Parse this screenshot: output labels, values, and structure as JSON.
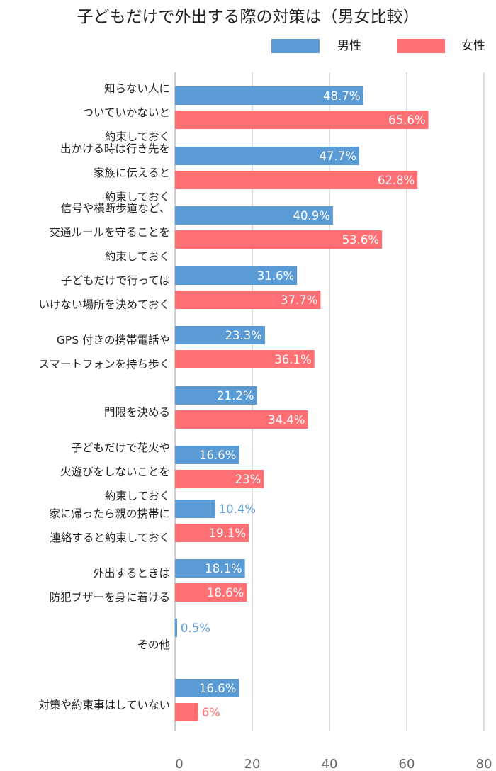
{
  "chart_data": {
    "type": "bar",
    "orientation": "horizontal",
    "title": "子どもだけで外出する際の対策は（男女比較）",
    "categories": [
      [
        "知らない人に",
        "ついていかないと",
        "約束しておく"
      ],
      [
        "出かける時は行き先を",
        "家族に伝えると",
        "約束しておく"
      ],
      [
        "信号や横断歩道など、",
        "交通ルールを守ることを",
        "約束しておく"
      ],
      [
        "子どもだけで行っては",
        "いけない場所を決めておく"
      ],
      [
        "GPS 付きの携帯電話や",
        "スマートフォンを持ち歩く"
      ],
      [
        "門限を決める"
      ],
      [
        "子どもだけで花火や",
        "火遊びをしないことを",
        "約束しておく"
      ],
      [
        "家に帰ったら親の携帯に",
        "連絡すると約束しておく"
      ],
      [
        "外出するときは",
        "防犯ブザーを身に着ける"
      ],
      [
        "その他"
      ],
      [
        "対策や約束事はしていない"
      ]
    ],
    "series": [
      {
        "name": "男性",
        "color": "#5b9bd5",
        "values": [
          48.7,
          47.7,
          40.9,
          31.6,
          23.3,
          21.2,
          16.6,
          10.4,
          18.1,
          0.5,
          16.6
        ],
        "labels": [
          "48.7%",
          "47.7%",
          "40.9%",
          "31.6%",
          "23.3%",
          "21.2%",
          "16.6%",
          "10.4%",
          "18.1%",
          "0.5%",
          "16.6%"
        ]
      },
      {
        "name": "女性",
        "color": "#ff7075",
        "values": [
          65.6,
          62.8,
          53.6,
          37.7,
          36.1,
          34.4,
          23,
          19.1,
          18.6,
          null,
          6
        ],
        "labels": [
          "65.6%",
          "62.8%",
          "53.6%",
          "37.7%",
          "36.1%",
          "34.4%",
          "23%",
          "19.1%",
          "18.6%",
          "",
          "6%"
        ]
      }
    ],
    "xlim": [
      0,
      80
    ],
    "xticks": [
      0,
      20,
      40,
      60,
      80
    ],
    "grid": true,
    "legend": "top-right",
    "xlabel": "",
    "ylabel": ""
  }
}
